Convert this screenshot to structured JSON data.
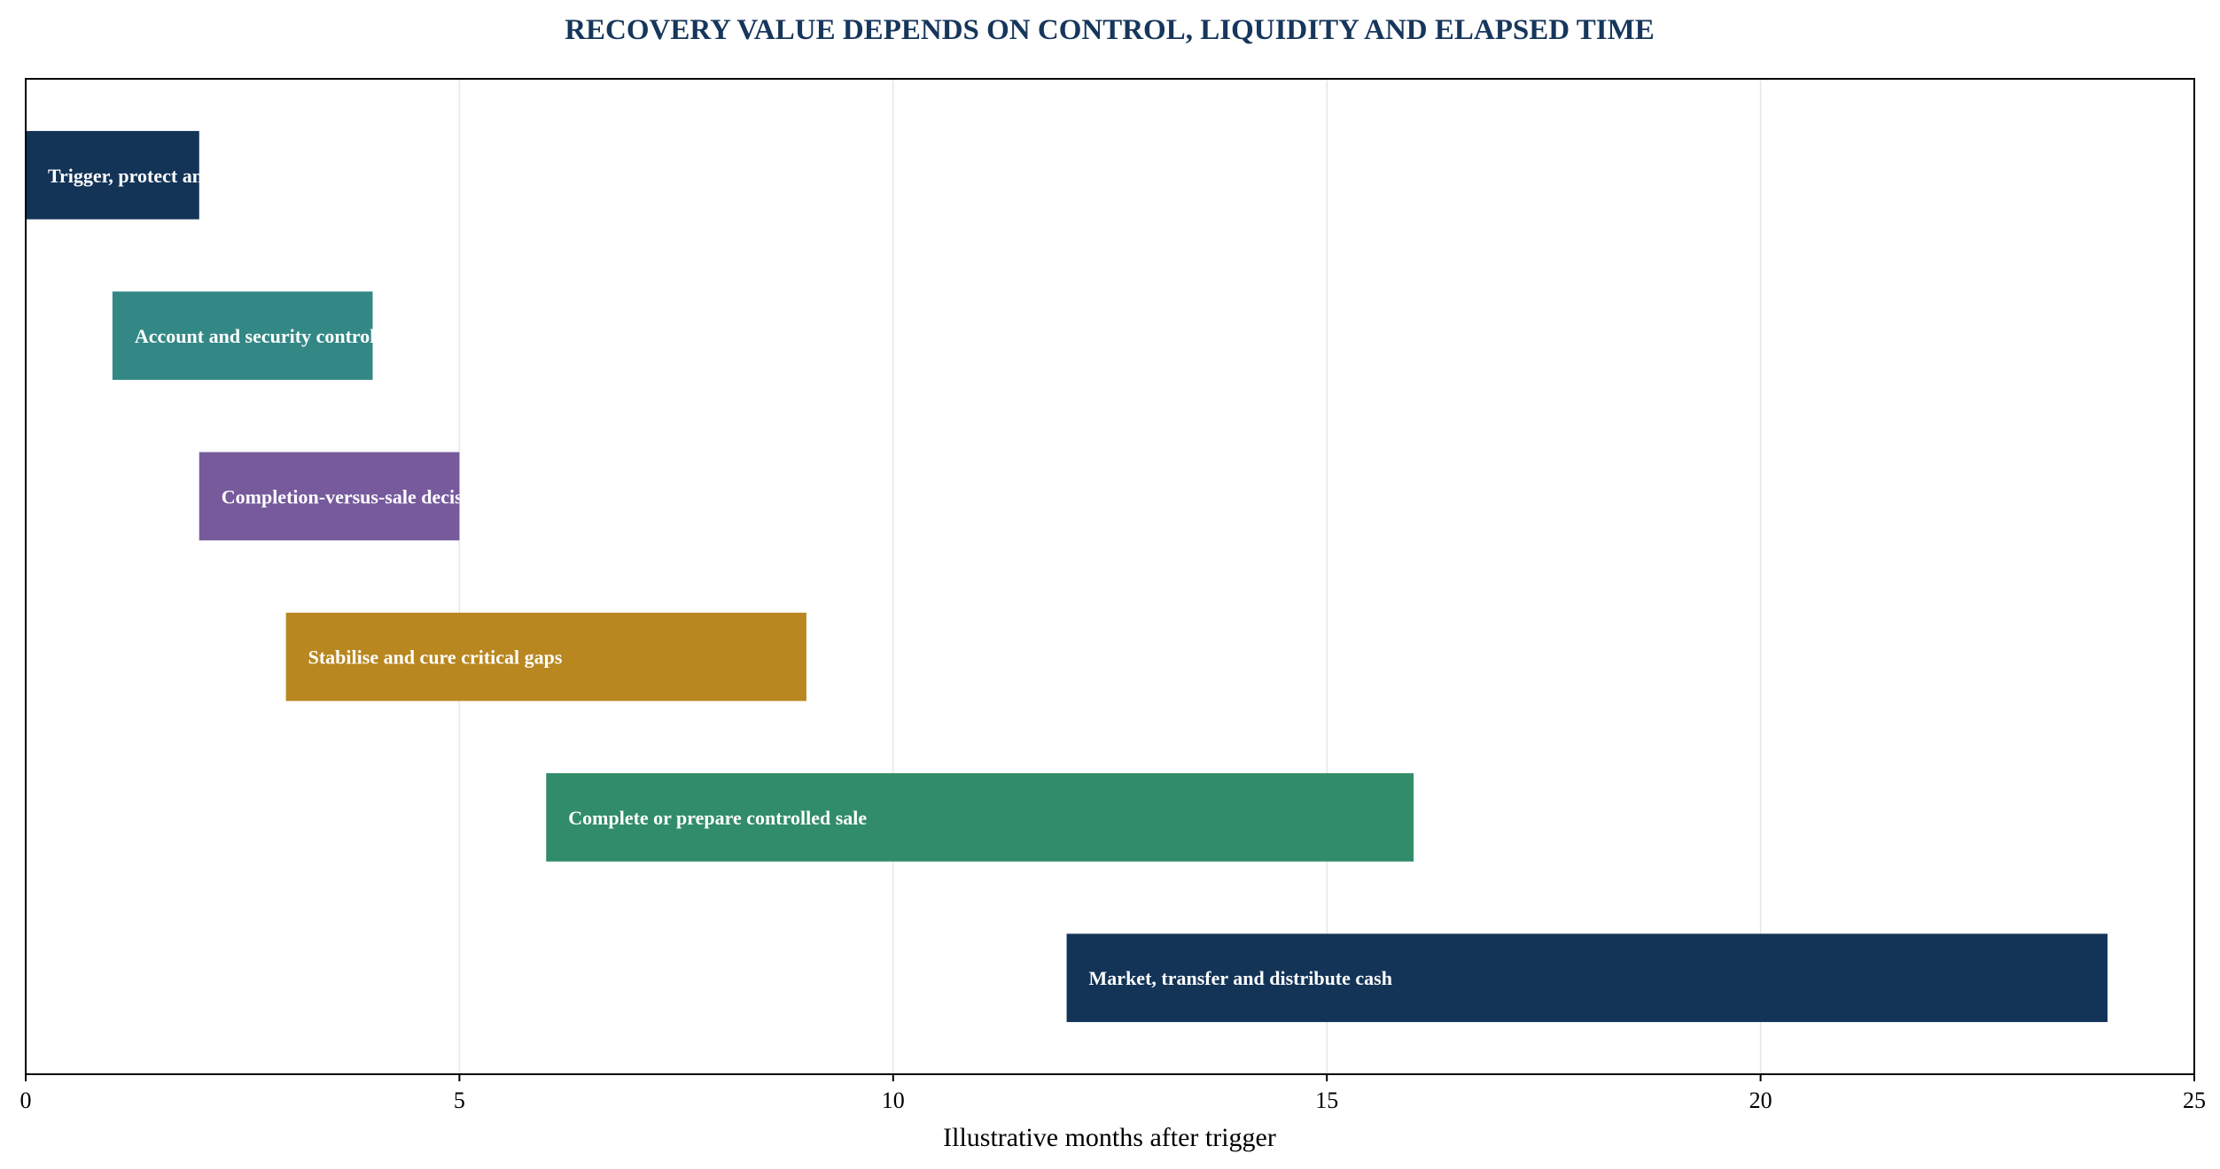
{
  "chart_data": {
    "type": "bar",
    "orientation": "horizontal",
    "title": "RECOVERY VALUE DEPENDS ON CONTROL, LIQUIDITY AND ELAPSED TIME",
    "xlabel": "Illustrative months after trigger",
    "ylabel": "",
    "xlim": [
      0,
      25
    ],
    "xticks": [
      0,
      5,
      10,
      15,
      20,
      25
    ],
    "grid": "vertical",
    "tasks": [
      {
        "label": "Trigger, protect and assess",
        "start": 0,
        "end": 2,
        "color": "#133457"
      },
      {
        "label": "Account and security control",
        "start": 1,
        "end": 4,
        "color": "#338886"
      },
      {
        "label": "Completion-versus-sale decision",
        "start": 2,
        "end": 5,
        "color": "#765a9c"
      },
      {
        "label": "Stabilise and cure critical gaps",
        "start": 3,
        "end": 9,
        "color": "#b88720"
      },
      {
        "label": "Complete or prepare controlled sale",
        "start": 6,
        "end": 16,
        "color": "#318c69"
      },
      {
        "label": "Market, transfer and distribute cash",
        "start": 12,
        "end": 24,
        "color": "#133457"
      }
    ]
  }
}
